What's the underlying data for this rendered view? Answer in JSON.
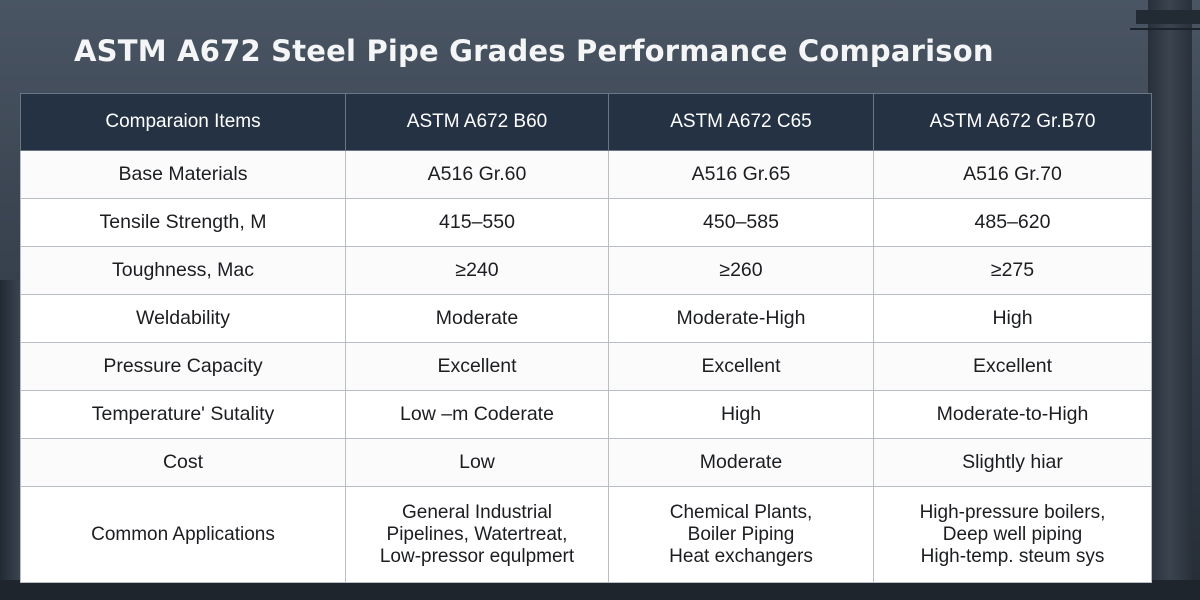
{
  "title": "ASTM A672 Steel Pipe Grades Performance Comparison",
  "table": {
    "headers": [
      "Comparaion Items",
      "ASTM A672 B60",
      "ASTM A672 C65",
      "ASTM A672 Gr.B70"
    ],
    "rows": [
      [
        "Base Materials",
        "A516 Gr.60",
        "A516 Gr.65",
        "A516 Gr.70"
      ],
      [
        "Tensile Strength, M",
        "415–550",
        "450–585",
        "485–620"
      ],
      [
        "Toughness, Mac",
        "≥240",
        "≥260",
        "≥275"
      ],
      [
        "Weldability",
        "Moderate",
        "Moderate-High",
        "High"
      ],
      [
        "Pressure Capacity",
        "Excellent",
        "Excellent",
        "Excellent"
      ],
      [
        "Temperature' Sutality",
        "Low –m Coderate",
        "High",
        "Moderate-to-High"
      ],
      [
        "Cost",
        "Low",
        "Moderate",
        "Slightly hiar"
      ]
    ],
    "applications": {
      "label": "Common Applications",
      "b60": [
        "General Industrial",
        "Pipelines, Watertreat,",
        "Low-pressor equlpmert"
      ],
      "c65": [
        "Chemical Plants,",
        "Boiler Piping",
        "Heat exchangers"
      ],
      "b70": [
        "High-pressure boilers,",
        "Deep well piping",
        "High-temp. steum sys"
      ]
    }
  }
}
